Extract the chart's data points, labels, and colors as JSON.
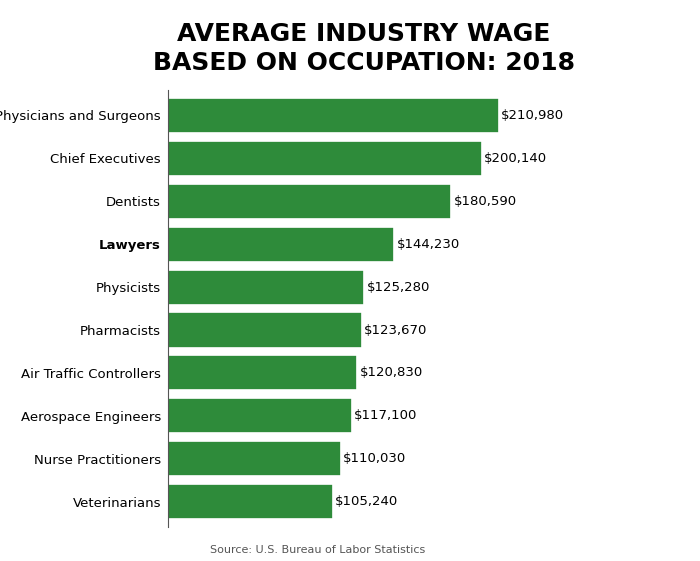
{
  "title_line1": "AVERAGE INDUSTRY WAGE",
  "title_line2": "BASED ON OCCUPATION: 2018",
  "categories": [
    "Physicians and Surgeons",
    "Chief Executives",
    "Dentists",
    "Lawyers",
    "Physicists",
    "Pharmacists",
    "Air Traffic Controllers",
    "Aerospace Engineers",
    "Nurse Practitioners",
    "Veterinarians"
  ],
  "values": [
    210980,
    200140,
    180590,
    144230,
    125280,
    123670,
    120830,
    117100,
    110030,
    105240
  ],
  "labels": [
    "$210,980",
    "$200,140",
    "$180,590",
    "$144,230",
    "$125,280",
    "$123,670",
    "$120,830",
    "$117,100",
    "$110,030",
    "$105,240"
  ],
  "bold_index": 3,
  "bar_color": "#2e8b3a",
  "background_color": "#ffffff",
  "source_text": "Source: U.S. Bureau of Labor Statistics",
  "xlim": [
    0,
    250000
  ],
  "bar_height": 0.82,
  "title_fontsize": 18,
  "label_fontsize": 9.5,
  "tick_fontsize": 9.5
}
